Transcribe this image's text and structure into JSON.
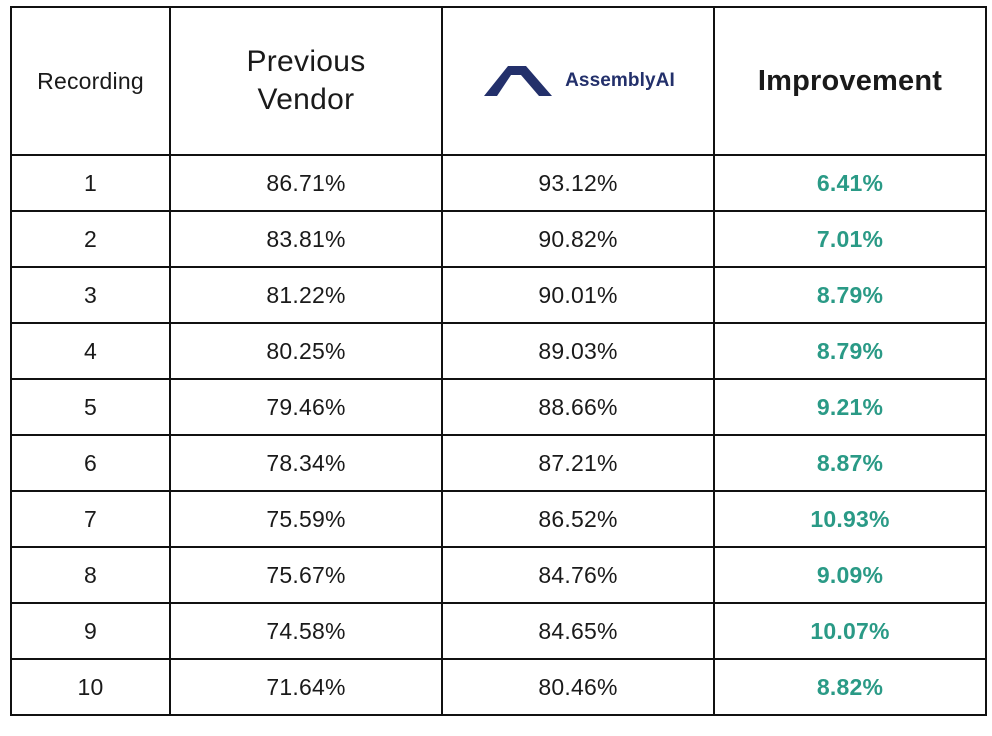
{
  "header": {
    "recording": "Recording",
    "previous_vendor_line1": "Previous",
    "previous_vendor_line2": "Vendor",
    "assembly_logo_text": "AssemblyAI",
    "improvement": "Improvement"
  },
  "colors": {
    "improvement_green": "#2a9a86",
    "logo_navy": "#23306b",
    "border": "#111111"
  },
  "icons": {
    "logo": "assemblyai-logo-icon"
  },
  "rows": [
    {
      "recording": "1",
      "previous": "86.71%",
      "assembly": "93.12%",
      "improvement": "6.41%"
    },
    {
      "recording": "2",
      "previous": "83.81%",
      "assembly": "90.82%",
      "improvement": "7.01%"
    },
    {
      "recording": "3",
      "previous": "81.22%",
      "assembly": "90.01%",
      "improvement": "8.79%"
    },
    {
      "recording": "4",
      "previous": "80.25%",
      "assembly": "89.03%",
      "improvement": "8.79%"
    },
    {
      "recording": "5",
      "previous": "79.46%",
      "assembly": "88.66%",
      "improvement": "9.21%"
    },
    {
      "recording": "6",
      "previous": "78.34%",
      "assembly": "87.21%",
      "improvement": "8.87%"
    },
    {
      "recording": "7",
      "previous": "75.59%",
      "assembly": "86.52%",
      "improvement": "10.93%"
    },
    {
      "recording": "8",
      "previous": "75.67%",
      "assembly": "84.76%",
      "improvement": "9.09%"
    },
    {
      "recording": "9",
      "previous": "74.58%",
      "assembly": "84.65%",
      "improvement": "10.07%"
    },
    {
      "recording": "10",
      "previous": "71.64%",
      "assembly": "80.46%",
      "improvement": "8.82%"
    }
  ]
}
